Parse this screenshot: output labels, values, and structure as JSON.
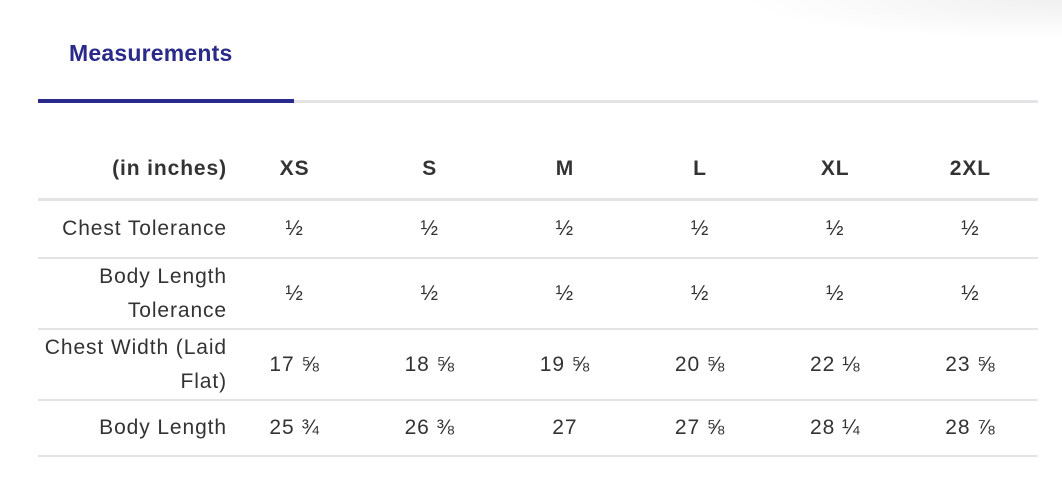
{
  "tab": {
    "label": "Measurements"
  },
  "table": {
    "header": [
      "(in inches)",
      "XS",
      "S",
      "M",
      "L",
      "XL",
      "2XL"
    ],
    "rows": [
      [
        "Chest Tolerance",
        "½",
        "½",
        "½",
        "½",
        "½",
        "½"
      ],
      [
        "Body Length Tolerance",
        "½",
        "½",
        "½",
        "½",
        "½",
        "½"
      ],
      [
        "Chest Width (Laid Flat)",
        "17 ⅝",
        "18 ⅝",
        "19 ⅝",
        "20 ⅝",
        "22 ⅛",
        "23 ⅝"
      ],
      [
        "Body Length",
        "25 ¾",
        "26 ⅜",
        "27",
        "27 ⅝",
        "28 ¼",
        "28 ⅞"
      ]
    ]
  }
}
